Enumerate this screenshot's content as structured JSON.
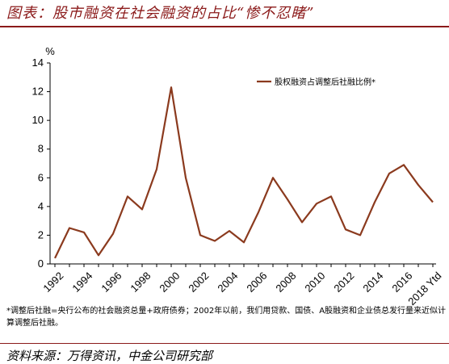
{
  "header": {
    "title": "图表：股市融资在社会融资的占比“惨不忍睹”"
  },
  "footer": {
    "footnote": "*调整后社融=央行公布的社会融资总量+政府债券；2002年以前，我们用贷款、国债、A股融资和企业债总发行量来近似计算调整后社融。",
    "source": "资料来源：万得资讯，中金公司研究部"
  },
  "colors": {
    "accent": "#8b1a1a",
    "series": "#8b3a1e"
  },
  "chart_data": {
    "type": "line",
    "ylabel": "%",
    "ylim": [
      0,
      14
    ],
    "yticks": [
      "0",
      "2",
      "4",
      "6",
      "8",
      "10",
      "12",
      "14"
    ],
    "x": [
      "1992",
      "1993",
      "1994",
      "1995",
      "1996",
      "1997",
      "1998",
      "1999",
      "2000",
      "2001",
      "2002",
      "2003",
      "2004",
      "2005",
      "2006",
      "2007",
      "2008",
      "2009",
      "2010",
      "2011",
      "2012",
      "2013",
      "2014",
      "2015",
      "2016",
      "2017",
      "2018 Ytd"
    ],
    "xticks": [
      "1992",
      "1994",
      "1996",
      "1998",
      "2000",
      "2002",
      "2004",
      "2006",
      "2008",
      "2010",
      "2012",
      "2014",
      "2016",
      "2018 Ytd"
    ],
    "series": [
      {
        "name": "股权融资占调整后社融比例*",
        "values": [
          0.4,
          2.5,
          2.2,
          0.6,
          2.1,
          4.7,
          3.8,
          6.6,
          12.3,
          6.0,
          2.0,
          1.6,
          2.3,
          1.5,
          3.6,
          6.0,
          4.5,
          2.9,
          4.2,
          4.7,
          2.4,
          2.0,
          4.3,
          6.3,
          6.9,
          5.5,
          4.3
        ]
      }
    ],
    "legend": "top-right",
    "grid": false
  }
}
